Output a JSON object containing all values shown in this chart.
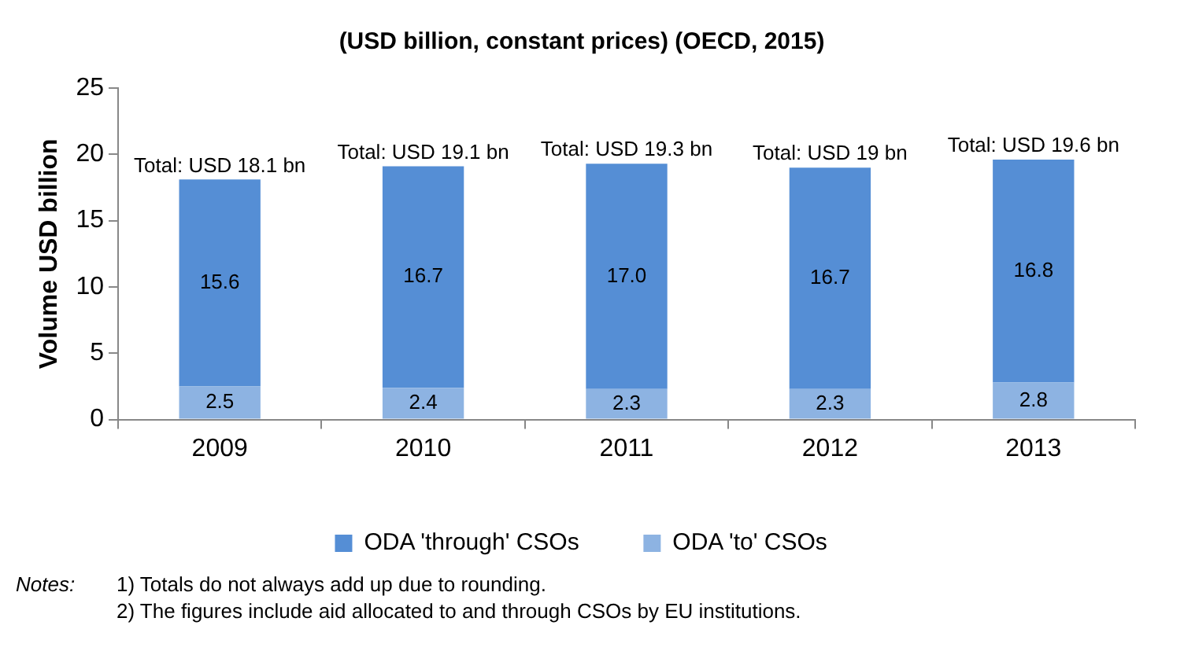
{
  "chart_data": {
    "type": "bar",
    "title": "(USD billion, constant prices) (OECD, 2015)",
    "ylabel": "Volume USD billion",
    "categories": [
      "2009",
      "2010",
      "2011",
      "2012",
      "2013"
    ],
    "stacked": true,
    "series": [
      {
        "name": "ODA 'to' CSOs",
        "color": "#8db3e2",
        "values": [
          2.5,
          2.4,
          2.3,
          2.3,
          2.8
        ],
        "value_labels": [
          "2.5",
          "2.4",
          "2.3",
          "2.3",
          "2.8"
        ]
      },
      {
        "name": "ODA 'through' CSOs",
        "color": "#558ed5",
        "values": [
          15.6,
          16.7,
          17.0,
          16.7,
          16.8
        ],
        "value_labels": [
          "15.6",
          "16.7",
          "17.0",
          "16.7",
          "16.8"
        ]
      }
    ],
    "totals": [
      "Total: USD 18.1 bn",
      "Total: USD 19.1 bn",
      "Total: USD 19.3 bn",
      "Total: USD 19 bn",
      "Total: USD 19.6 bn"
    ],
    "ylim": [
      0,
      25
    ],
    "yticks": [
      0,
      5,
      10,
      15,
      20,
      25
    ],
    "grid": false,
    "legend": "bottom",
    "annotations": [
      "Notes:",
      "1) Totals do not always add up due to rounding.",
      "2) The figures include aid allocated to and through CSOs by EU institutions."
    ]
  }
}
